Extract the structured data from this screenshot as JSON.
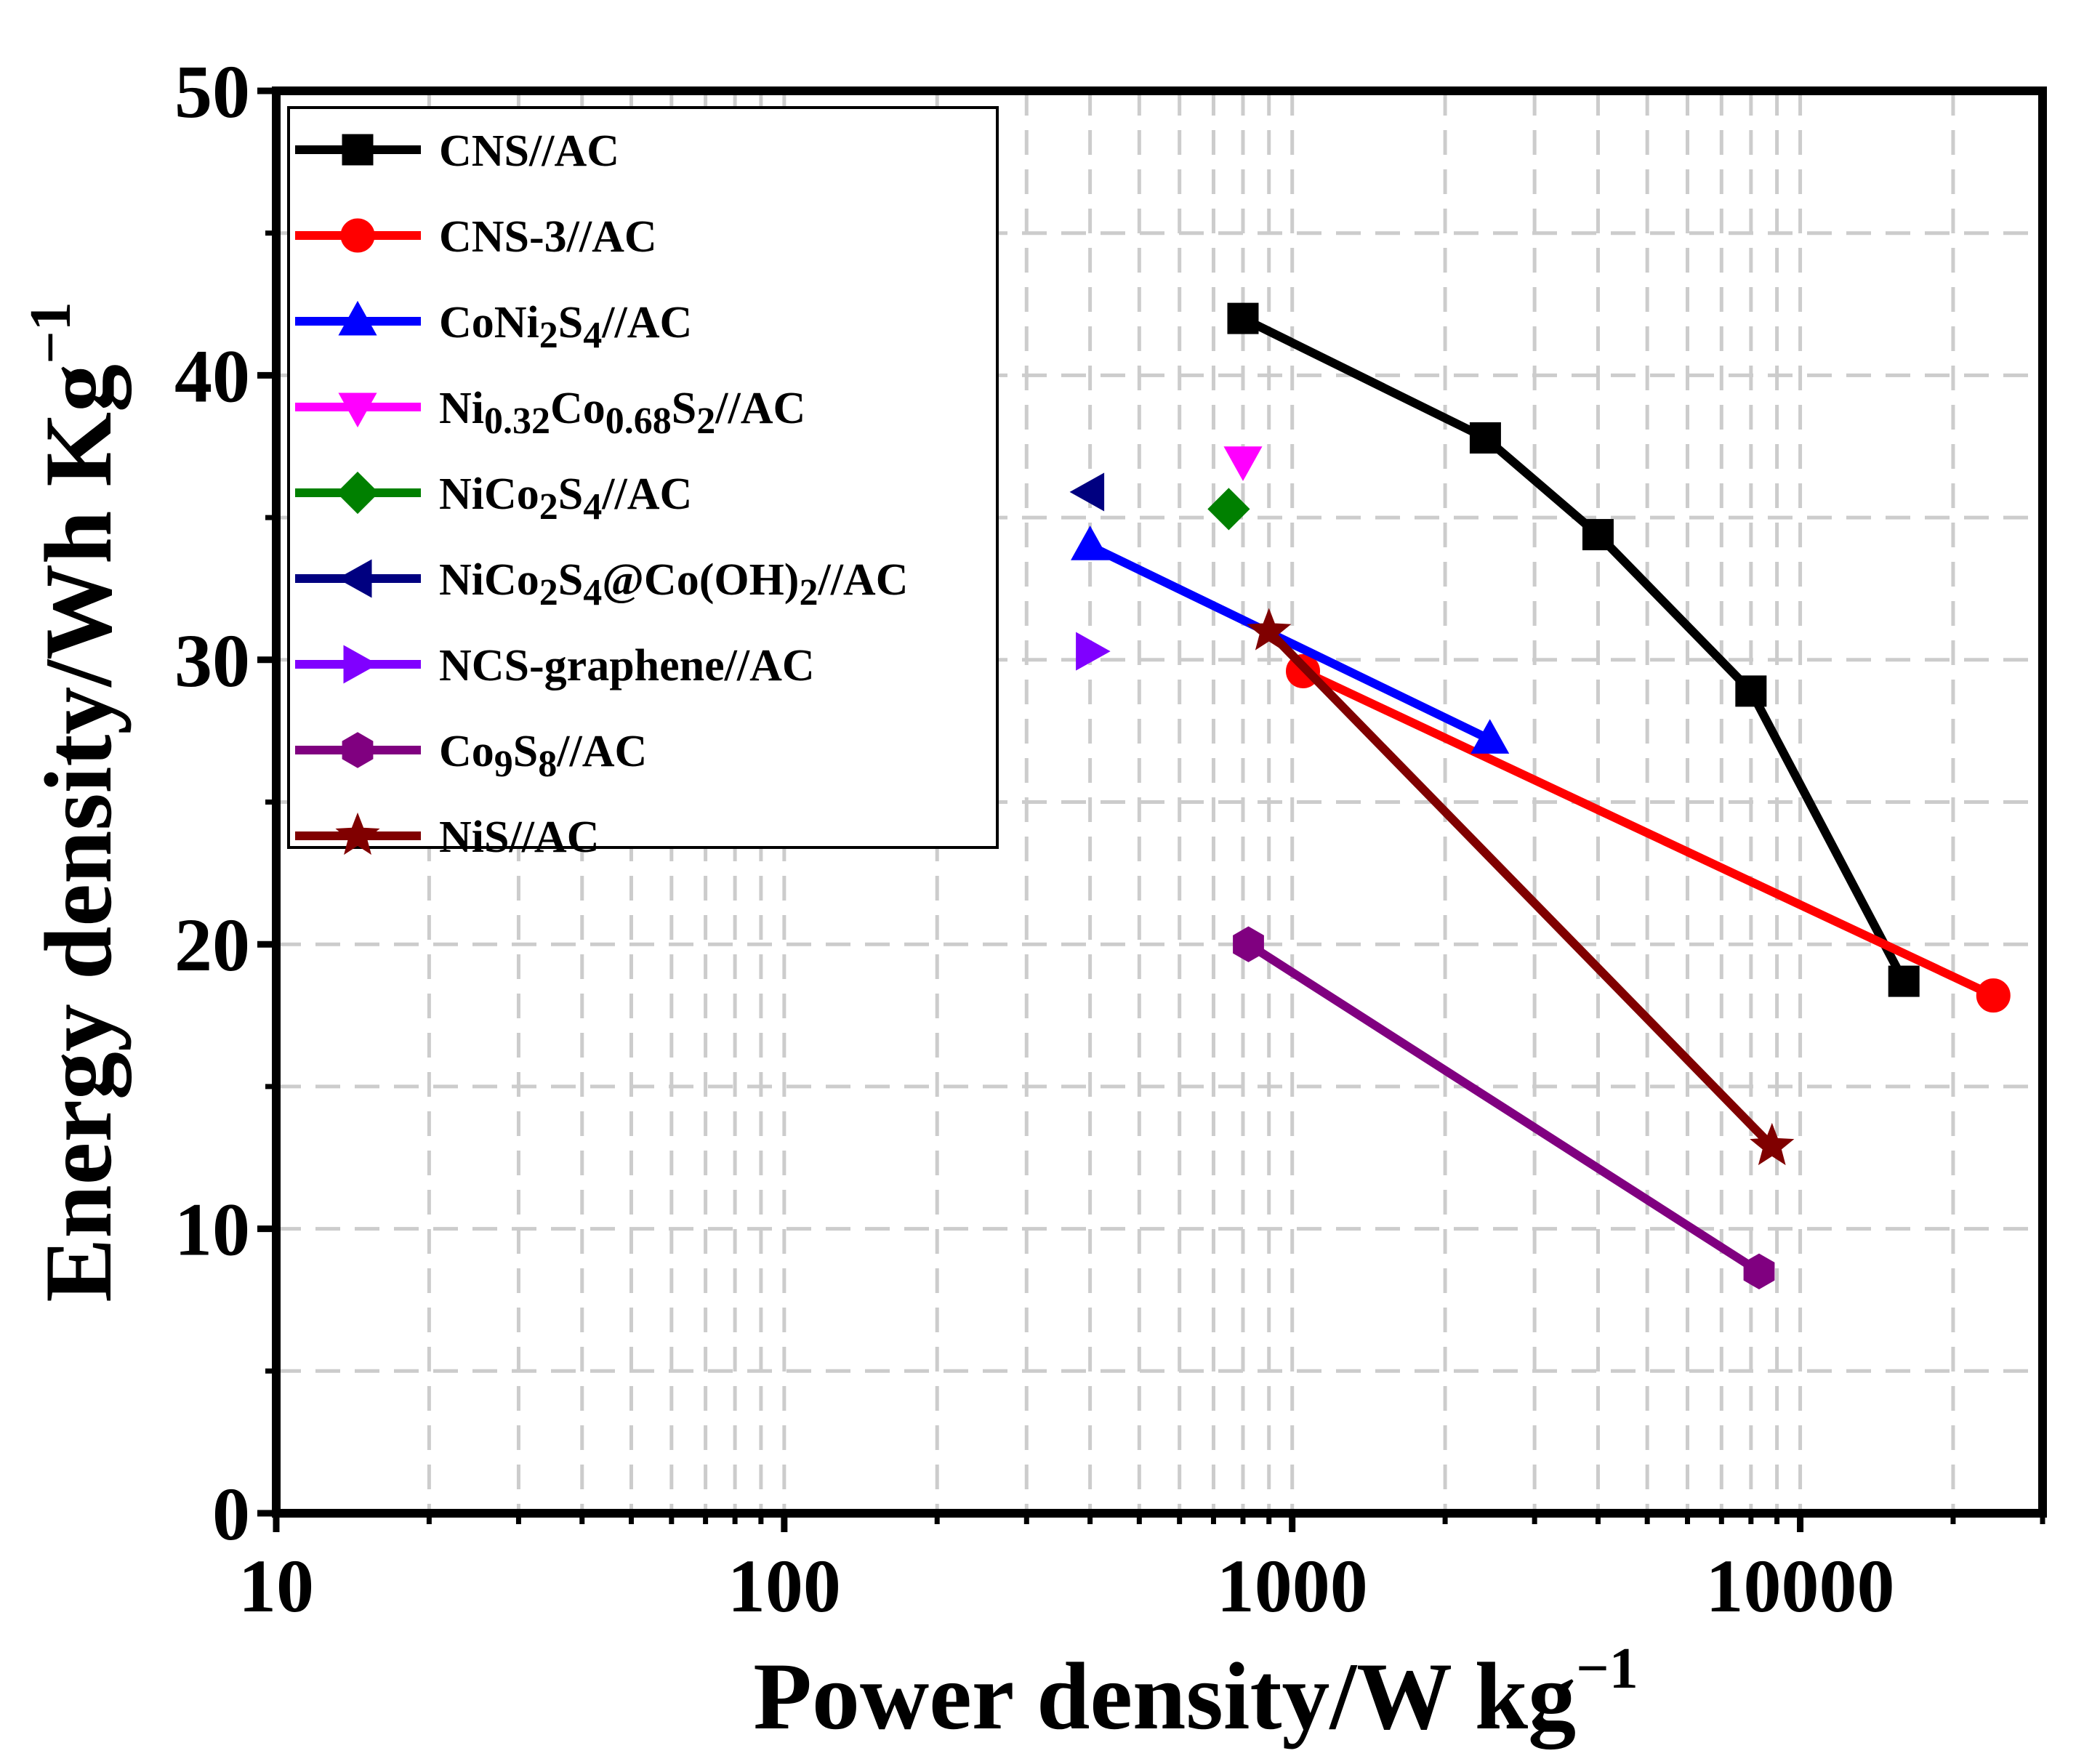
{
  "chart_data": {
    "type": "scatter",
    "x_scale": "log",
    "xlabel": "Power density/W kg",
    "xlabel_sup": "−1",
    "ylabel": "Energy density/Wh Kg",
    "ylabel_sup": "−1",
    "xlim": [
      10,
      30000
    ],
    "ylim": [
      0,
      50
    ],
    "x_ticks": [
      {
        "value": 10,
        "label": "10"
      },
      {
        "value": 100,
        "label": "100"
      },
      {
        "value": 1000,
        "label": "1000"
      },
      {
        "value": 10000,
        "label": "10000"
      }
    ],
    "y_ticks": [
      {
        "value": 0,
        "label": "0"
      },
      {
        "value": 10,
        "label": "10"
      },
      {
        "value": 20,
        "label": "20"
      },
      {
        "value": 30,
        "label": "30"
      },
      {
        "value": 40,
        "label": "40"
      },
      {
        "value": 50,
        "label": "50"
      }
    ],
    "grid": true,
    "legend_position": "top-left",
    "series": [
      {
        "name": "CNS//AC",
        "legend_parts": [
          [
            "CNS//AC",
            ""
          ]
        ],
        "color": "#000000",
        "marker": "square",
        "line": true,
        "points": [
          [
            800,
            42.0
          ],
          [
            2400,
            37.8
          ],
          [
            4000,
            34.4
          ],
          [
            8000,
            28.9
          ],
          [
            16000,
            18.7
          ]
        ]
      },
      {
        "name": "CNS-3//AC",
        "legend_parts": [
          [
            "CNS-3//AC",
            ""
          ]
        ],
        "color": "#ff0000",
        "marker": "circle",
        "line": true,
        "points": [
          [
            1050,
            29.6
          ],
          [
            24000,
            18.2
          ]
        ]
      },
      {
        "name": "CoNi2S4//AC",
        "legend_parts": [
          [
            "CoNi",
            ""
          ],
          [
            "2",
            "sub"
          ],
          [
            "S",
            ""
          ],
          [
            "4",
            "sub"
          ],
          [
            "//AC",
            ""
          ]
        ],
        "color": "#0000ff",
        "marker": "triangle-up",
        "line": true,
        "points": [
          [
            400,
            34.0
          ],
          [
            2450,
            27.2
          ]
        ]
      },
      {
        "name": "Ni0.32Co0.68S2//AC",
        "legend_parts": [
          [
            "Ni",
            ""
          ],
          [
            "0.32",
            "sub"
          ],
          [
            "Co",
            ""
          ],
          [
            "0.68",
            "sub"
          ],
          [
            "S",
            ""
          ],
          [
            "2",
            "sub"
          ],
          [
            "//AC",
            ""
          ]
        ],
        "color": "#ff00ff",
        "marker": "triangle-down",
        "line": false,
        "points": [
          [
            800,
            37.0
          ]
        ]
      },
      {
        "name": "NiCo2S4//AC",
        "legend_parts": [
          [
            "NiCo",
            ""
          ],
          [
            "2",
            "sub"
          ],
          [
            "S",
            ""
          ],
          [
            "4",
            "sub"
          ],
          [
            "//AC",
            ""
          ]
        ],
        "color": "#008000",
        "marker": "diamond",
        "line": false,
        "points": [
          [
            750,
            35.3
          ]
        ]
      },
      {
        "name": "NiCo2S4@Co(OH)2//AC",
        "legend_parts": [
          [
            "NiCo",
            ""
          ],
          [
            "2",
            "sub"
          ],
          [
            "S",
            ""
          ],
          [
            "4",
            "sub"
          ],
          [
            "@Co(OH)",
            ""
          ],
          [
            "2",
            "sub"
          ],
          [
            "//AC",
            ""
          ]
        ],
        "color": "#000080",
        "marker": "triangle-left",
        "line": false,
        "points": [
          [
            400,
            35.9
          ]
        ]
      },
      {
        "name": "NCS-graphene//AC",
        "legend_parts": [
          [
            "NCS-graphene//AC",
            ""
          ]
        ],
        "color": "#8000ff",
        "marker": "triangle-right",
        "line": false,
        "points": [
          [
            400,
            30.3
          ]
        ]
      },
      {
        "name": "Co9S8//AC",
        "legend_parts": [
          [
            "Co",
            ""
          ],
          [
            "9",
            "sub"
          ],
          [
            "S",
            ""
          ],
          [
            "8",
            "sub"
          ],
          [
            "//AC",
            ""
          ]
        ],
        "color": "#800080",
        "marker": "hexagon",
        "line": true,
        "points": [
          [
            820,
            20.0
          ],
          [
            8300,
            8.5
          ]
        ]
      },
      {
        "name": "NiS//AC",
        "legend_parts": [
          [
            "NiS//AC",
            ""
          ]
        ],
        "color": "#800000",
        "marker": "star",
        "line": true,
        "points": [
          [
            900,
            31.0
          ],
          [
            8800,
            12.9
          ]
        ]
      }
    ]
  }
}
